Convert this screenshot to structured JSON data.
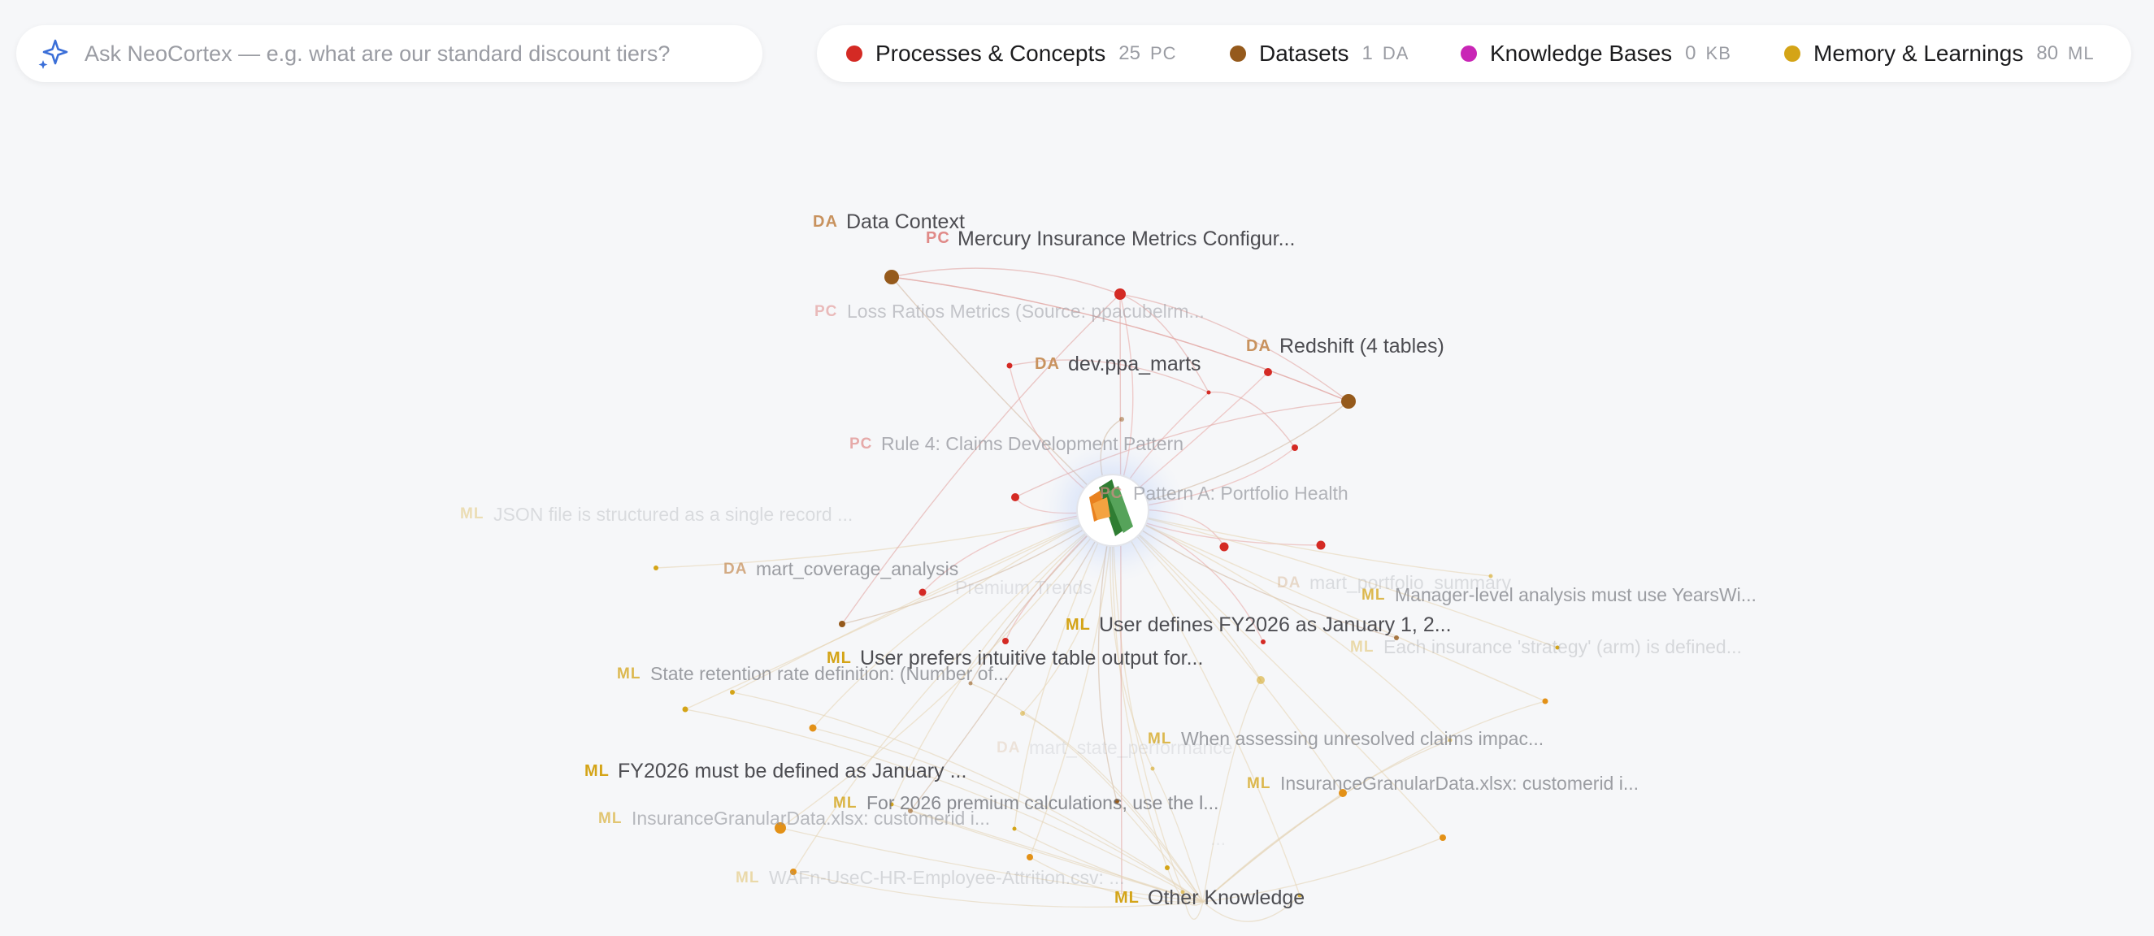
{
  "search": {
    "placeholder": "Ask NeoCortex — e.g. what are our standard discount tiers?",
    "icon": "sparkles-icon"
  },
  "legend": [
    {
      "name": "Processes & Concepts",
      "count": "25",
      "code": "PC",
      "color": "#d42a24"
    },
    {
      "name": "Datasets",
      "count": "1",
      "code": "DA",
      "color": "#955a1c"
    },
    {
      "name": "Knowledge Bases",
      "count": "0",
      "code": "KB",
      "color": "#c926b6"
    },
    {
      "name": "Memory & Learnings",
      "count": "80",
      "code": "ML",
      "color": "#d4a417"
    }
  ],
  "colors": {
    "pc": "#d42a24",
    "da": "#955a1c",
    "ml": "#d4a417",
    "ml_orange": "#e39117",
    "background": "#f6f7f9"
  },
  "graph": {
    "center_node": "neocortex-logo",
    "labels": [
      {
        "tag": "DA",
        "text": "Data Context",
        "type": "da"
      },
      {
        "tag": "PC",
        "text": "Mercury Insurance Metrics Configur...",
        "type": "pc"
      },
      {
        "tag": "PC",
        "text": "Loss Ratios Metrics (Source: ppacubelrm...",
        "type": "pc"
      },
      {
        "tag": "DA",
        "text": "Redshift (4 tables)",
        "type": "da"
      },
      {
        "tag": "DA",
        "text": "dev.ppa_marts",
        "type": "da"
      },
      {
        "tag": "PC",
        "text": "Rule 4: Claims Development Pattern",
        "type": "pc"
      },
      {
        "tag": "PC",
        "text": "Pattern A: Portfolio Health",
        "type": "pc"
      },
      {
        "tag": "ML",
        "text": "JSON file is structured as a single record ...",
        "type": "ml"
      },
      {
        "tag": "DA",
        "text": "mart_coverage_analysis",
        "type": "da"
      },
      {
        "tag": "",
        "text": "Premium Trends",
        "type": "pc"
      },
      {
        "tag": "DA",
        "text": "mart_portfolio_summary",
        "type": "da"
      },
      {
        "tag": "ML",
        "text": "Manager-level analysis must use YearsWi...",
        "type": "ml"
      },
      {
        "tag": "ML",
        "text": "User defines FY2026 as January 1, 2...",
        "type": "ml"
      },
      {
        "tag": "ML",
        "text": "Each insurance 'strategy' (arm) is defined...",
        "type": "ml"
      },
      {
        "tag": "ML",
        "text": "User prefers intuitive table output for...",
        "type": "ml"
      },
      {
        "tag": "ML",
        "text": "State retention rate definition: (Number of...",
        "type": "ml"
      },
      {
        "tag": "ML",
        "text": "When assessing unresolved claims impac...",
        "type": "ml"
      },
      {
        "tag": "DA",
        "text": "mart_state_performance",
        "type": "da"
      },
      {
        "tag": "ML",
        "text": "FY2026 must be defined as January ...",
        "type": "ml"
      },
      {
        "tag": "ML",
        "text": "InsuranceGranularData.xlsx: customerid i...",
        "type": "ml"
      },
      {
        "tag": "ML",
        "text": "For 2026 premium calculations, use the l...",
        "type": "ml"
      },
      {
        "tag": "ML",
        "text": "InsuranceGranularData.xlsx: customerid i...",
        "type": "ml"
      },
      {
        "tag": "",
        "text": "...",
        "type": "ml"
      },
      {
        "tag": "ML",
        "text": "WAFn-UseC-HR-Employee-Attrition.csv: ...",
        "type": "ml"
      },
      {
        "tag": "ML",
        "text": "Other Knowledge",
        "type": "ml"
      }
    ]
  }
}
